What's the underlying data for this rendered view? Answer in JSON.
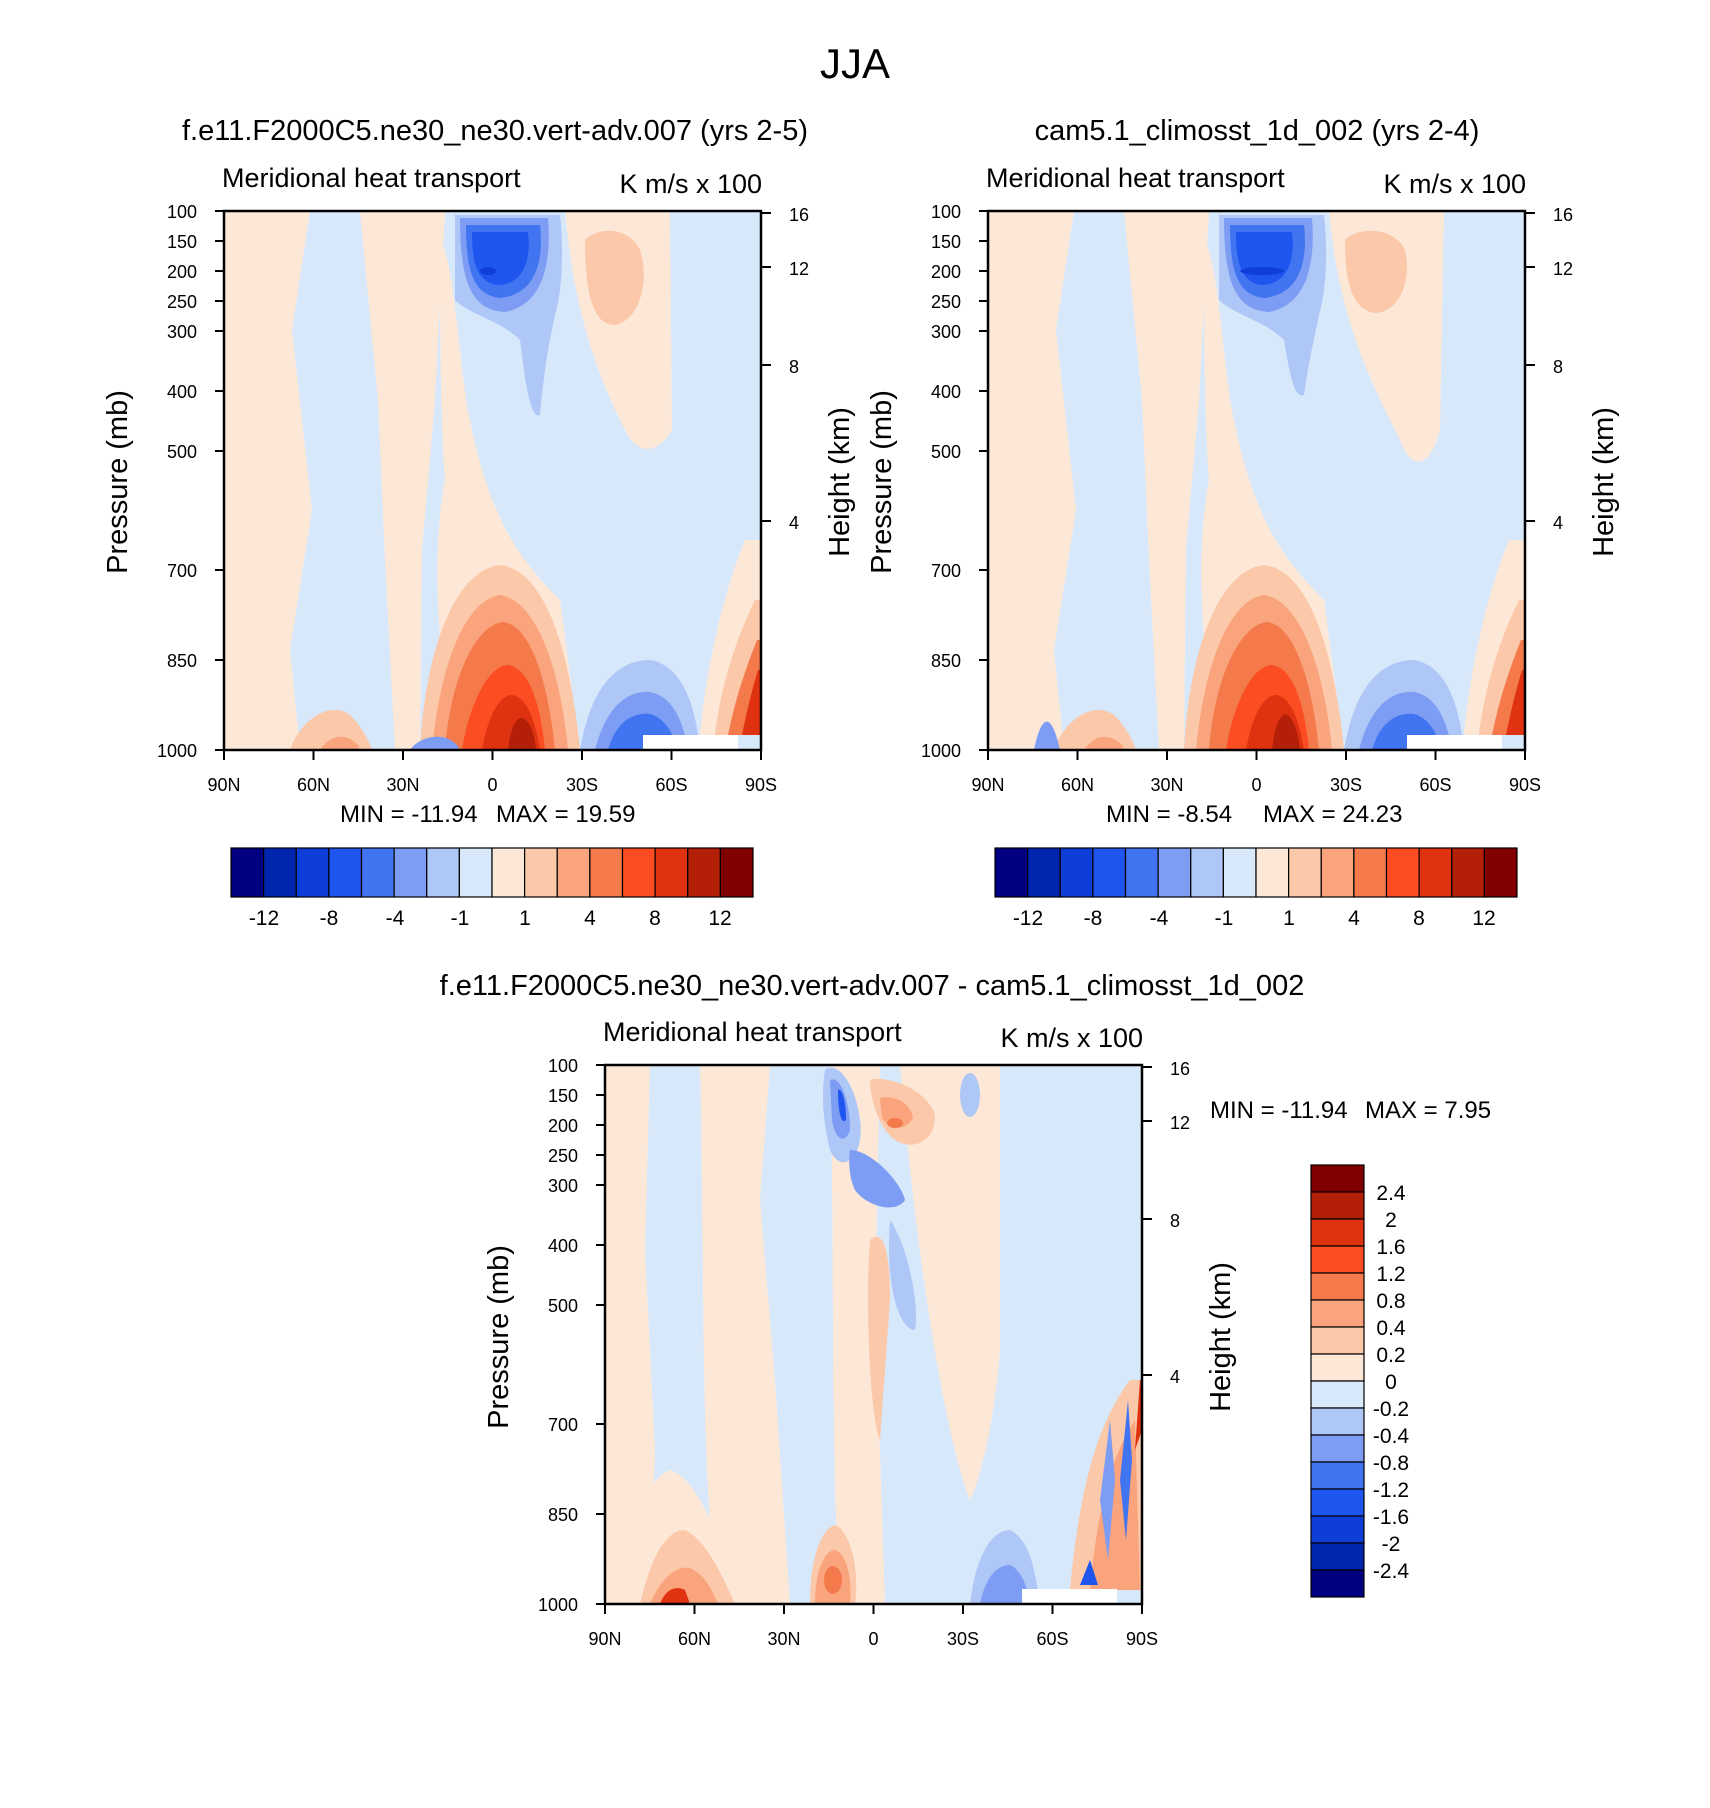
{
  "figure_title": "JJA",
  "colors": {
    "abs_levels": [
      "#000080",
      "#0026b0",
      "#0d3fd8",
      "#1e55ee",
      "#4174f0",
      "#7d9cf3",
      "#afc7f7",
      "#d7e8fb",
      "#fde8d8",
      "#fbc8aa",
      "#f9a47c",
      "#f47a4c",
      "#fb4d21",
      "#de3210",
      "#b41f07",
      "#800000"
    ],
    "diff_levels": [
      "#000080",
      "#0026b0",
      "#0d3fd8",
      "#1e55ee",
      "#4174f0",
      "#7d9cf3",
      "#afc7f7",
      "#d7e8fb",
      "#fde8d8",
      "#fbc8aa",
      "#f9a47c",
      "#f47a4c",
      "#fb4d21",
      "#de3210",
      "#b41f07",
      "#800000"
    ]
  },
  "chart_data": [
    {
      "type": "heatmap",
      "title": "f.e11.F2000C5.ne30_ne30.vert-adv.007 (yrs 2-5)",
      "subtitle_left": "Meridional heat transport",
      "subtitle_right": "K m/s x 100",
      "xlabel": "",
      "ylabel": "Pressure (mb)",
      "ylabel_right": "Height (km)",
      "x_ticks": [
        "90N",
        "60N",
        "30N",
        "0",
        "30S",
        "60S",
        "90S"
      ],
      "y_ticks": [
        "100",
        "150",
        "200",
        "250",
        "300",
        "400",
        "500",
        "700",
        "850",
        "1000"
      ],
      "y_ticks_right": [
        "16",
        "12",
        "8",
        "4"
      ],
      "stats": {
        "min_label": "MIN = -11.94",
        "max_label": "MAX =  19.59",
        "min": -11.94,
        "max": 19.59
      },
      "colorbar_labels": [
        "-12",
        "-8",
        "-4",
        "-1",
        "1",
        "4",
        "8",
        "12"
      ]
    },
    {
      "type": "heatmap",
      "title": "cam5.1_climosst_1d_002 (yrs 2-4)",
      "subtitle_left": "Meridional heat transport",
      "subtitle_right": "K m/s x 100",
      "xlabel": "",
      "ylabel": "Pressure (mb)",
      "ylabel_right": "Height (km)",
      "x_ticks": [
        "90N",
        "60N",
        "30N",
        "0",
        "30S",
        "60S",
        "90S"
      ],
      "y_ticks": [
        "100",
        "150",
        "200",
        "250",
        "300",
        "400",
        "500",
        "700",
        "850",
        "1000"
      ],
      "y_ticks_right": [
        "16",
        "12",
        "8",
        "4"
      ],
      "stats": {
        "min_label": "MIN =  -8.54",
        "max_label": "MAX =  24.23",
        "min": -8.54,
        "max": 24.23
      },
      "colorbar_labels": [
        "-12",
        "-8",
        "-4",
        "-1",
        "1",
        "4",
        "8",
        "12"
      ]
    },
    {
      "type": "heatmap",
      "title": "f.e11.F2000C5.ne30_ne30.vert-adv.007 - cam5.1_climosst_1d_002",
      "subtitle_left": "Meridional heat transport",
      "subtitle_right": "K m/s x 100",
      "xlabel": "",
      "ylabel": "Pressure (mb)",
      "ylabel_right": "Height (km)",
      "x_ticks": [
        "90N",
        "60N",
        "30N",
        "0",
        "30S",
        "60S",
        "90S"
      ],
      "y_ticks": [
        "100",
        "150",
        "200",
        "250",
        "300",
        "400",
        "500",
        "700",
        "850",
        "1000"
      ],
      "y_ticks_right": [
        "16",
        "12",
        "8",
        "4"
      ],
      "stats": {
        "min_label": "MIN = -11.94",
        "max_label": "MAX =   7.95",
        "min": -11.94,
        "max": 7.95
      },
      "colorbar_labels": [
        "2.4",
        "2",
        "1.6",
        "1.2",
        "0.8",
        "0.4",
        "0.2",
        "0",
        "-0.2",
        "-0.4",
        "-0.8",
        "-1.2",
        "-1.6",
        "-2",
        "-2.4"
      ]
    }
  ]
}
